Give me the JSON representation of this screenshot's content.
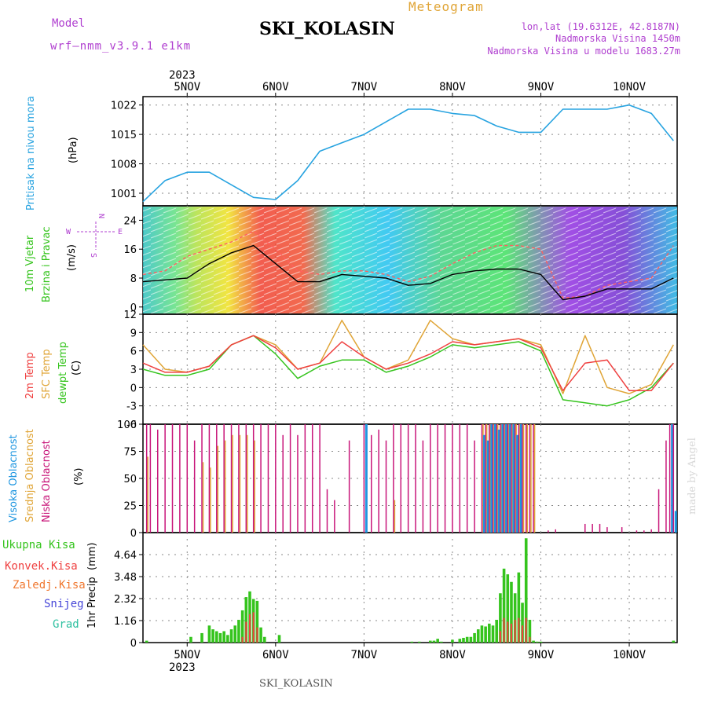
{
  "header": {
    "title": "SKI_KOLASIN",
    "meteogram_label": "Meteogram",
    "model_label": "Model",
    "model_value": "wrf–nmm_v3.9.1 e1km",
    "lonlat": "lon,lat (19.6312E, 42.8187N)",
    "altitude": "Nadmorska Visina 1450m",
    "altitude_model": "Nadmorska Visina u modelu 1683.27m",
    "footer_title": "SKI_KOLASIN",
    "watermark": "made by Angel",
    "year_top": "2023",
    "year_bottom": "2023"
  },
  "colors": {
    "pressure": "#27a3e0",
    "temp2m": "#ef4040",
    "sfc": "#e0a537",
    "dewpt": "#35c41d",
    "high_cloud": "#1e96e0",
    "mid_cloud": "#e0a537",
    "low_cloud": "#c8167a",
    "total_precip": "#35c41d",
    "conv_precip": "#ef4040",
    "frozen": "#f07830",
    "snow": "#4646d8",
    "grad": "#2ec0a0",
    "wind_dir_label": "#b040d0"
  },
  "chart_data": [
    {
      "type": "line",
      "name": "pressure",
      "ylabel_main": "Pritisak na nivou mora",
      "ylabel_unit": "(hPa)",
      "ylim": [
        998,
        1024
      ],
      "yticks": [
        1001,
        1008,
        1015,
        1022
      ],
      "x_hours": [
        0,
        6,
        12,
        18,
        24,
        30,
        36,
        42,
        48,
        54,
        60,
        66,
        72,
        78,
        84,
        90,
        96,
        102,
        108,
        114,
        120,
        126,
        132,
        138,
        144
      ],
      "series": [
        {
          "values": [
            999,
            1004,
            1006,
            1006,
            1003,
            1000,
            999.5,
            1004,
            1011,
            1013,
            1015,
            1018,
            1021,
            1021,
            1020,
            1019.5,
            1017,
            1015.5,
            1015.5,
            1021,
            1021,
            1021,
            1022,
            1020,
            1013.5
          ]
        }
      ]
    },
    {
      "type": "line",
      "name": "wind",
      "ylabel_main": "10m Vjetar",
      "ylabel_sub": "Brzina i Pravac",
      "ylabel_unit": "(m/s)",
      "compass": {
        "n": "N",
        "w": "W",
        "e": "E",
        "s": "S"
      },
      "ylim": [
        -2,
        28
      ],
      "yticks": [
        0,
        8,
        16,
        24
      ],
      "x_hours": [
        0,
        6,
        12,
        18,
        24,
        30,
        36,
        42,
        48,
        54,
        60,
        66,
        72,
        78,
        84,
        90,
        96,
        102,
        108,
        114,
        120,
        126,
        132,
        138,
        144
      ],
      "series": [
        {
          "name": "speed",
          "values": [
            7,
            7.5,
            8,
            12,
            15,
            17,
            12,
            7,
            7,
            9,
            8.5,
            8,
            6,
            6.5,
            9,
            10,
            10.5,
            10.5,
            9,
            2,
            3,
            5,
            5,
            5,
            8
          ]
        },
        {
          "name": "gust",
          "values": [
            9,
            10,
            14,
            16,
            18,
            21,
            16,
            10,
            9,
            10,
            10,
            9,
            7,
            8.5,
            12,
            15,
            17,
            17,
            16,
            2.5,
            3,
            6,
            7,
            8,
            17
          ]
        }
      ]
    },
    {
      "type": "line",
      "name": "temperature",
      "ylabel_main": "2m Temp",
      "ylabel_sub": "SFC Temp",
      "ylabel_sub2": "dewpt Temp",
      "ylabel_unit": "(C)",
      "ylim": [
        -6,
        12
      ],
      "yticks": [
        -6,
        -3,
        0,
        3,
        6,
        9,
        12
      ],
      "x_hours": [
        0,
        6,
        12,
        18,
        24,
        30,
        36,
        42,
        48,
        54,
        60,
        66,
        72,
        78,
        84,
        90,
        96,
        102,
        108,
        114,
        120,
        126,
        132,
        138,
        144
      ],
      "series": [
        {
          "name": "2m",
          "values": [
            4,
            2.5,
            2.5,
            3.5,
            7,
            8.5,
            6.5,
            3,
            4,
            7.5,
            5,
            3,
            4,
            5.5,
            7.5,
            7,
            7.5,
            8,
            6.5,
            -0.5,
            4,
            4.5,
            -0.5,
            -0.5,
            4
          ]
        },
        {
          "name": "sfc",
          "values": [
            7,
            3,
            2.5,
            3.5,
            7,
            8.5,
            7,
            3,
            4,
            11,
            5,
            3,
            4.5,
            11,
            8,
            7,
            7.5,
            8,
            7,
            -1,
            8.5,
            0,
            -1,
            0.5,
            7
          ]
        },
        {
          "name": "dewpt",
          "values": [
            3,
            2,
            2,
            3,
            7,
            8.5,
            5.5,
            1.5,
            3.5,
            4.5,
            4.5,
            2.5,
            3.5,
            5,
            7,
            6.5,
            7,
            7.5,
            6,
            -2,
            -2.5,
            -3,
            -2,
            0,
            4
          ]
        }
      ]
    },
    {
      "type": "bar",
      "name": "clouds",
      "ylabel_main": "Visoka Oblacnost",
      "ylabel_sub": "Srednja Oblacnost",
      "ylabel_sub2": "Niska Oblacnost",
      "ylabel_unit": "(%)",
      "ylim": [
        0,
        100
      ],
      "yticks": [
        0,
        25,
        50,
        75,
        100
      ],
      "x_hours": [
        1,
        2,
        4,
        6,
        8,
        10,
        12,
        14,
        16,
        18,
        20,
        22,
        24,
        26,
        28,
        30,
        32,
        34,
        36,
        38,
        40,
        42,
        44,
        46,
        48,
        50,
        52,
        56,
        60,
        62,
        64,
        66,
        68,
        70,
        72,
        74,
        76,
        78,
        80,
        82,
        84,
        86,
        88,
        90,
        92,
        93,
        94,
        95,
        96,
        97,
        98,
        99,
        100,
        101,
        102,
        103,
        104,
        105,
        106,
        108,
        110,
        112,
        120,
        122,
        124,
        126,
        130,
        134,
        136,
        138,
        140,
        142,
        143,
        144
      ],
      "series": [
        {
          "name": "low",
          "values": [
            100,
            100,
            95,
            100,
            100,
            100,
            100,
            85,
            100,
            100,
            100,
            100,
            100,
            100,
            100,
            100,
            100,
            100,
            100,
            90,
            100,
            90,
            100,
            100,
            100,
            40,
            30,
            85,
            100,
            90,
            95,
            85,
            100,
            100,
            100,
            100,
            85,
            100,
            100,
            100,
            100,
            100,
            100,
            85,
            100,
            100,
            100,
            100,
            100,
            100,
            100,
            100,
            100,
            100,
            100,
            100,
            100,
            100,
            100,
            0,
            2,
            3,
            8,
            8,
            8,
            5,
            5,
            2,
            2,
            3,
            40,
            85,
            100,
            100
          ]
        },
        {
          "name": "mid",
          "values": [
            70,
            0,
            0,
            0,
            0,
            0,
            0,
            0,
            65,
            60,
            80,
            85,
            90,
            90,
            90,
            85,
            0,
            0,
            0,
            0,
            0,
            0,
            0,
            0,
            0,
            0,
            0,
            0,
            0,
            0,
            0,
            0,
            30,
            0,
            0,
            0,
            0,
            0,
            0,
            0,
            0,
            0,
            0,
            0,
            100,
            100,
            100,
            100,
            100,
            100,
            100,
            100,
            100,
            100,
            100,
            100,
            100,
            100,
            100,
            0,
            0,
            0,
            0,
            0,
            0,
            0,
            0,
            0,
            0,
            0,
            0,
            0,
            0,
            0
          ]
        },
        {
          "name": "high",
          "values": [
            0,
            0,
            0,
            0,
            0,
            0,
            0,
            0,
            0,
            0,
            0,
            0,
            0,
            0,
            0,
            0,
            0,
            0,
            0,
            0,
            0,
            0,
            0,
            0,
            0,
            0,
            0,
            0,
            100,
            0,
            0,
            0,
            0,
            0,
            0,
            0,
            0,
            0,
            0,
            0,
            0,
            0,
            0,
            0,
            90,
            85,
            100,
            100,
            95,
            100,
            100,
            100,
            100,
            90,
            100,
            0,
            0,
            0,
            0,
            0,
            0,
            0,
            0,
            0,
            0,
            0,
            0,
            0,
            0,
            0,
            0,
            0,
            100,
            20
          ]
        }
      ]
    },
    {
      "type": "bar",
      "name": "precipitation",
      "legend": [
        "Ukupna Kisa",
        "Konvek.Kisa",
        "Zaledj.Kisa",
        "Snijeg",
        "Grad"
      ],
      "ylabel_main": "1hr Precip",
      "ylabel_unit": "(mm)",
      "ylim": [
        0,
        5.8
      ],
      "yticks": [
        0,
        1.16,
        2.32,
        3.48,
        4.64
      ],
      "x_hours": [
        1,
        13,
        16,
        18,
        19,
        20,
        21,
        22,
        23,
        24,
        25,
        26,
        27,
        28,
        29,
        30,
        31,
        32,
        33,
        37,
        73,
        75,
        78,
        79,
        80,
        81,
        84,
        86,
        87,
        88,
        89,
        90,
        91,
        92,
        93,
        94,
        95,
        96,
        97,
        98,
        99,
        100,
        101,
        102,
        103,
        104,
        105,
        106,
        107,
        108,
        144
      ],
      "series": [
        {
          "name": "Ukupna Kisa",
          "values": [
            0.1,
            0.3,
            0.5,
            0.9,
            0.7,
            0.6,
            0.5,
            0.6,
            0.4,
            0.7,
            0.9,
            1.2,
            1.7,
            2.4,
            2.7,
            2.3,
            2.2,
            0.8,
            0.3,
            0.4,
            0.05,
            0.05,
            0.1,
            0.1,
            0.2,
            0.05,
            0.15,
            0.2,
            0.25,
            0.3,
            0.3,
            0.5,
            0.7,
            0.9,
            0.85,
            1.0,
            0.9,
            1.2,
            2.6,
            3.9,
            3.6,
            3.2,
            2.6,
            3.7,
            2.1,
            5.5,
            1.2,
            0.1,
            0.05,
            0.05,
            0.1
          ]
        },
        {
          "name": "Konvek.Kisa",
          "values": [
            0,
            0,
            0,
            0,
            0,
            0,
            0,
            0,
            0,
            0,
            0,
            0,
            0.3,
            1.1,
            1.5,
            1.6,
            0.8,
            0,
            0,
            0,
            0,
            0,
            0,
            0,
            0,
            0,
            0,
            0,
            0,
            0,
            0,
            0,
            0,
            0,
            0,
            0,
            0,
            0,
            0.6,
            1.3,
            1.1,
            1.0,
            1.2,
            1.3,
            0.9,
            1.3,
            0.3,
            0,
            0,
            0,
            0
          ]
        }
      ]
    }
  ],
  "time_axis": {
    "days": [
      "5NOV",
      "6NOV",
      "7NOV",
      "8NOV",
      "9NOV",
      "10NOV"
    ],
    "day_hours": [
      12,
      36,
      60,
      84,
      108,
      132
    ],
    "xlim": [
      0,
      145
    ]
  }
}
